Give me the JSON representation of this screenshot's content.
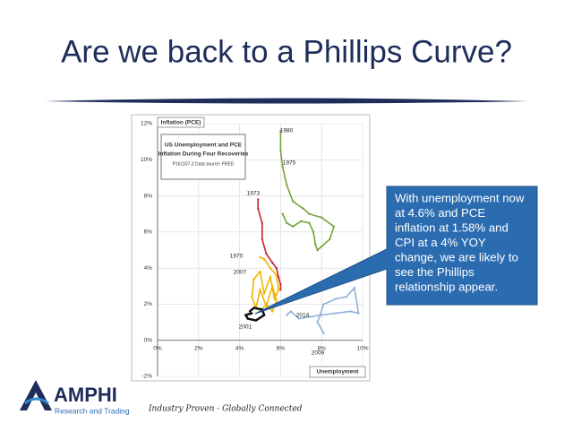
{
  "slide": {
    "title": "Are we back to a Phillips Curve?",
    "callout": [
      "With unemployment now",
      "at 4.6% and PCE",
      "inflation at 1.58% and",
      "CPI  at a 4% YOY",
      "change, we are likely to",
      "see the Phillips",
      "relationship appear."
    ],
    "logo": "AMPHI",
    "logo_sub": "Research and Trading",
    "tagline": "Industry Proven - Globally Connected"
  },
  "chart_data": {
    "type": "line",
    "y_label": "Inflation (PCE)",
    "x_label": "Unemployment",
    "title": [
      "US Unemployment and PCE",
      "Inflation During Four Recoveries"
    ],
    "subtitle": "P161107-2 Data source: FRED",
    "annotations": [
      "1980",
      "1975",
      "1973",
      "1970",
      "2007",
      "2014",
      "2001",
      "2009"
    ],
    "xlim": [
      0,
      10
    ],
    "ylim": [
      -2,
      12
    ],
    "xticks": [
      {
        "value": 0,
        "label": "0%"
      },
      {
        "value": 2,
        "label": "2%"
      },
      {
        "value": 4,
        "label": "4%"
      },
      {
        "value": 6,
        "label": "6%"
      },
      {
        "value": 8,
        "label": "8%"
      },
      {
        "value": 10,
        "label": "10%"
      }
    ],
    "yticks": [
      {
        "value": -2,
        "label": "-2%"
      },
      {
        "value": 0,
        "label": "0%"
      },
      {
        "value": 2,
        "label": "2%"
      },
      {
        "value": 4,
        "label": "4%"
      },
      {
        "value": 6,
        "label": "6%"
      },
      {
        "value": 8,
        "label": "8%"
      },
      {
        "value": 10,
        "label": "10%"
      },
      {
        "value": 12,
        "label": "12%"
      }
    ],
    "grid": true,
    "series": [
      {
        "color": "#77a33a",
        "x": [
          6.0,
          6.0,
          6.1,
          6.3,
          6.6,
          7.1,
          7.4,
          8.0,
          8.6,
          8.4,
          8.0,
          7.8,
          7.7,
          7.6,
          7.4,
          7.0,
          6.6,
          6.3,
          6.1
        ],
        "values": [
          11.6,
          10.5,
          9.6,
          8.6,
          7.7,
          7.3,
          7.0,
          6.8,
          6.3,
          5.6,
          5.2,
          5.0,
          5.3,
          6.0,
          6.5,
          6.6,
          6.3,
          6.5,
          7.0
        ]
      },
      {
        "color": "#c0282e",
        "x": [
          4.9,
          4.9,
          5.1,
          5.1,
          5.3,
          5.6,
          5.8,
          5.9,
          6.0,
          6.0
        ],
        "values": [
          7.8,
          7.3,
          6.5,
          5.6,
          4.8,
          4.3,
          4.0,
          3.5,
          3.1,
          2.8
        ]
      },
      {
        "color": "#f0b400",
        "x": [
          5.0,
          5.2,
          5.5,
          5.8,
          5.9,
          5.7,
          5.5,
          5.2,
          5.0,
          4.7,
          4.6,
          4.8,
          5.0,
          5.3,
          5.6,
          5.8,
          5.6,
          5.3,
          5.0
        ],
        "values": [
          4.6,
          4.5,
          4.0,
          3.6,
          2.8,
          2.3,
          3.5,
          2.6,
          3.8,
          3.4,
          2.4,
          1.8,
          2.8,
          1.9,
          3.0,
          2.2,
          1.6,
          2.0,
          1.6
        ]
      },
      {
        "color": "#8fb0d8",
        "x": [
          8.1,
          7.8,
          8.1,
          8.7,
          9.2,
          9.6,
          9.8,
          9.4,
          8.7,
          8.0,
          7.4,
          6.9,
          6.5,
          6.3
        ],
        "values": [
          0.4,
          1.0,
          2.0,
          2.3,
          2.4,
          2.9,
          1.5,
          1.6,
          1.5,
          1.4,
          1.3,
          1.2,
          1.6,
          1.4
        ]
      },
      {
        "color": "#111111",
        "x": [
          4.6,
          4.3,
          4.4,
          4.8,
          5.2,
          5.1,
          4.7,
          4.5
        ],
        "values": [
          1.5,
          1.4,
          1.2,
          1.1,
          1.4,
          1.7,
          1.8,
          1.6
        ]
      }
    ]
  }
}
